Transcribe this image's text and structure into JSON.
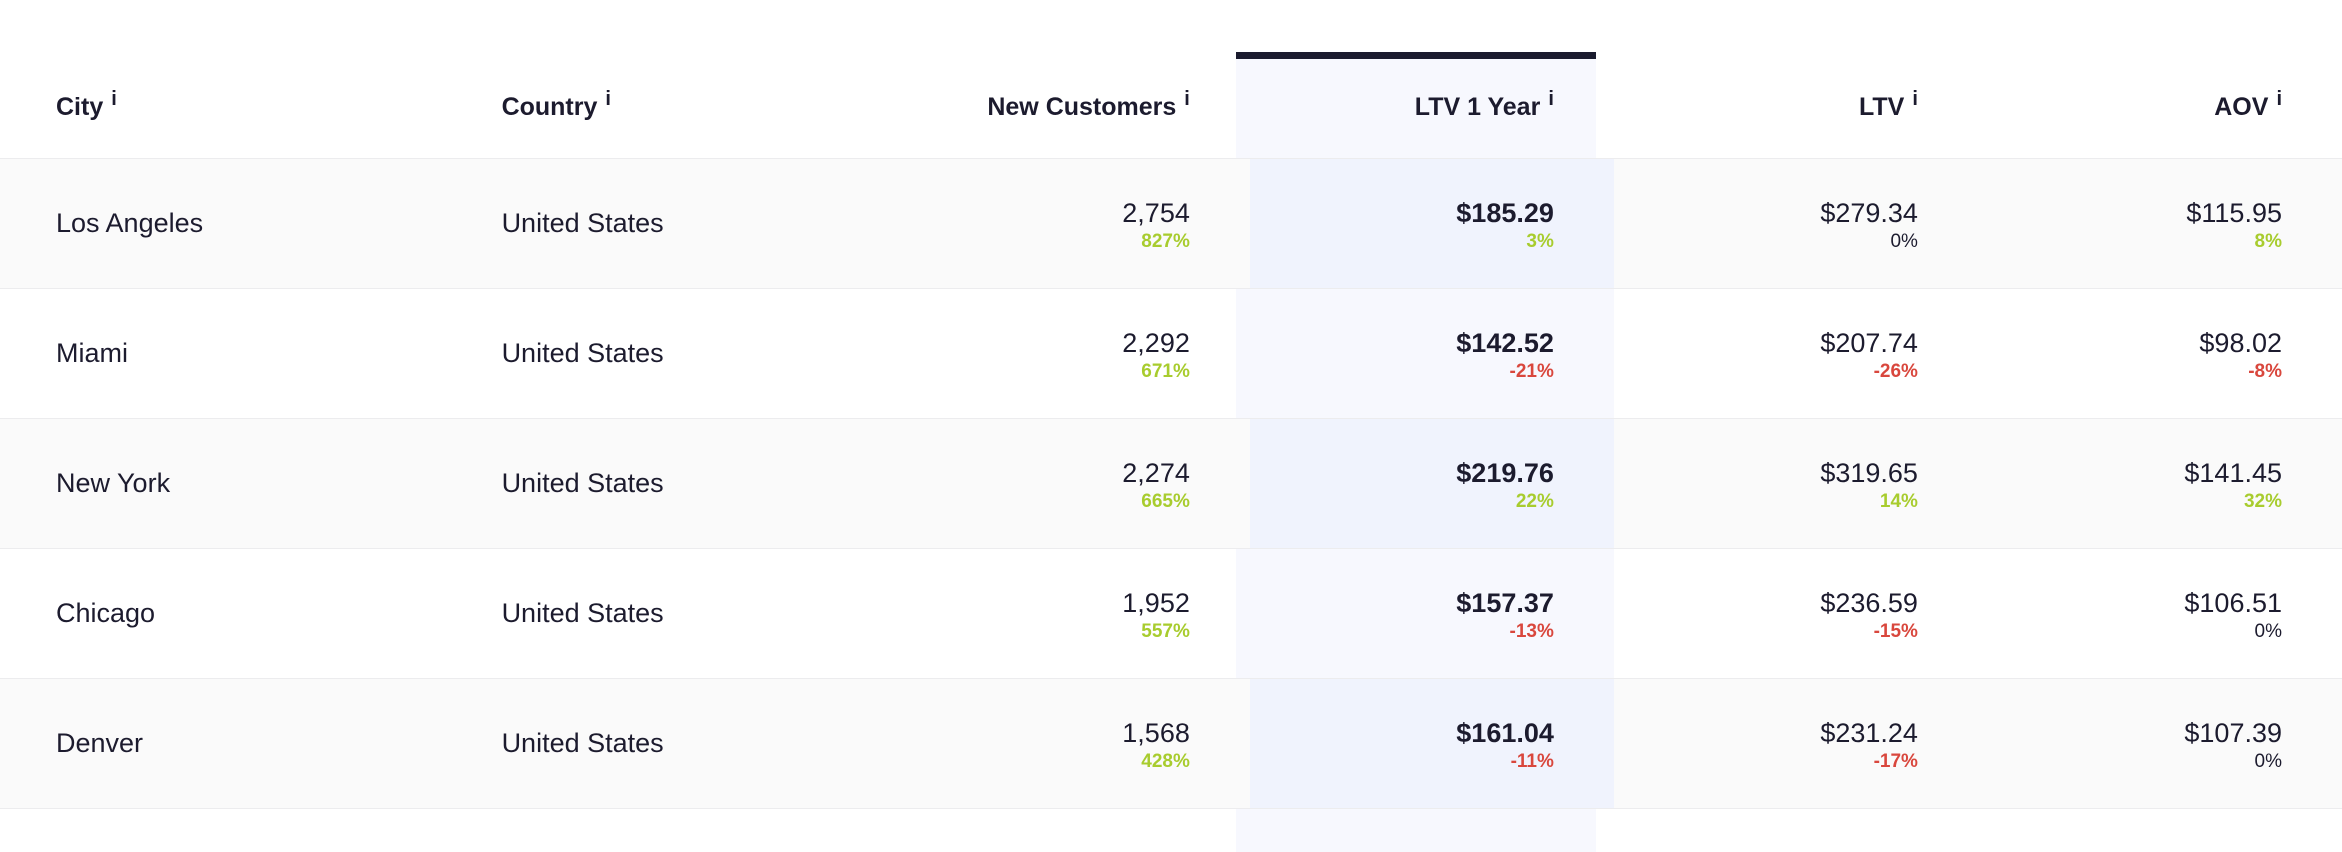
{
  "table": {
    "headers": {
      "city": "City",
      "country": "Country",
      "new_customers": "New Customers",
      "ltv_1_year": "LTV 1 Year",
      "ltv": "LTV",
      "aov": "AOV",
      "info_glyph": "i"
    },
    "rows": [
      {
        "city": "Los Angeles",
        "country": "United States",
        "new_customers": {
          "value": "2,754",
          "change": "827%",
          "trend": "positive"
        },
        "ltv_1_year": {
          "value": "$185.29",
          "change": "3%",
          "trend": "positive"
        },
        "ltv": {
          "value": "$279.34",
          "change": "0%",
          "trend": "neutral"
        },
        "aov": {
          "value": "$115.95",
          "change": "8%",
          "trend": "positive"
        }
      },
      {
        "city": "Miami",
        "country": "United States",
        "new_customers": {
          "value": "2,292",
          "change": "671%",
          "trend": "positive"
        },
        "ltv_1_year": {
          "value": "$142.52",
          "change": "-21%",
          "trend": "negative"
        },
        "ltv": {
          "value": "$207.74",
          "change": "-26%",
          "trend": "negative"
        },
        "aov": {
          "value": "$98.02",
          "change": "-8%",
          "trend": "negative"
        }
      },
      {
        "city": "New York",
        "country": "United States",
        "new_customers": {
          "value": "2,274",
          "change": "665%",
          "trend": "positive"
        },
        "ltv_1_year": {
          "value": "$219.76",
          "change": "22%",
          "trend": "positive"
        },
        "ltv": {
          "value": "$319.65",
          "change": "14%",
          "trend": "positive"
        },
        "aov": {
          "value": "$141.45",
          "change": "32%",
          "trend": "positive"
        }
      },
      {
        "city": "Chicago",
        "country": "United States",
        "new_customers": {
          "value": "1,952",
          "change": "557%",
          "trend": "positive"
        },
        "ltv_1_year": {
          "value": "$157.37",
          "change": "-13%",
          "trend": "negative"
        },
        "ltv": {
          "value": "$236.59",
          "change": "-15%",
          "trend": "negative"
        },
        "aov": {
          "value": "$106.51",
          "change": "0%",
          "trend": "neutral"
        }
      },
      {
        "city": "Denver",
        "country": "United States",
        "new_customers": {
          "value": "1,568",
          "change": "428%",
          "trend": "positive"
        },
        "ltv_1_year": {
          "value": "$161.04",
          "change": "-11%",
          "trend": "negative"
        },
        "ltv": {
          "value": "$231.24",
          "change": "-17%",
          "trend": "negative"
        },
        "aov": {
          "value": "$107.39",
          "change": "0%",
          "trend": "neutral"
        }
      }
    ],
    "sorted_column": "ltv_1_year"
  },
  "colors": {
    "positive": "#a8cc2e",
    "negative": "#d9473d",
    "neutral": "#1c1b2e",
    "sorted_column_bar": "#1a1b2e",
    "sorted_column_bg": "#f7f8fe"
  }
}
